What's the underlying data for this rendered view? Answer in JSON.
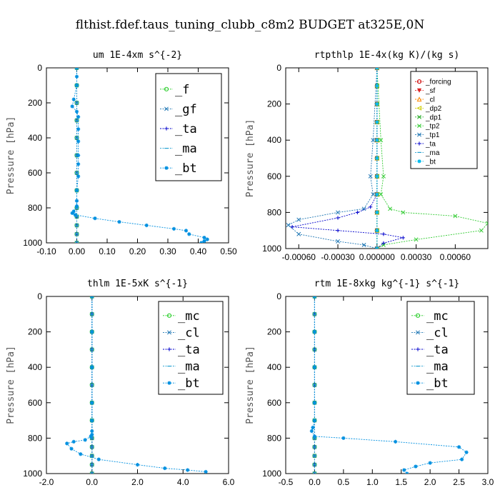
{
  "figure": {
    "title": "flthist.fdef.taus_tuning_clubb_c8m2  BUDGET at325E,0N"
  },
  "chart_data": [
    {
      "type": "line",
      "title": "um  1E-4xm s^{-2}",
      "ylabel": "Pressure [hPa]",
      "xlim": [
        -0.1,
        0.5
      ],
      "ylim": [
        1000,
        0
      ],
      "xticks": [
        -0.1,
        0.0,
        0.1,
        0.2,
        0.3,
        0.4,
        0.5
      ],
      "xtick_labels": [
        "-0.10",
        "0.00",
        "0.10",
        "0.20",
        "0.30",
        "0.40",
        "0.50"
      ],
      "yticks": [
        0,
        200,
        400,
        600,
        800,
        1000
      ],
      "ytick_labels": [
        "0",
        "200",
        "400",
        "600",
        "800",
        "1000"
      ],
      "legend": "top-right",
      "series": [
        {
          "name": "_f",
          "color": "#22cc22",
          "marker": "o",
          "x": [
            0,
            0,
            0,
            0,
            0,
            0,
            0,
            0,
            0,
            0,
            0,
            0,
            0
          ],
          "y": [
            0,
            100,
            200,
            300,
            400,
            500,
            600,
            700,
            800,
            850,
            900,
            950,
            1000
          ]
        },
        {
          "name": "_gf",
          "color": "#1f77b4",
          "marker": "x",
          "x": [
            0,
            0,
            0,
            0,
            0,
            0,
            0,
            0,
            0,
            0,
            0,
            0,
            0
          ],
          "y": [
            0,
            100,
            200,
            300,
            400,
            500,
            600,
            700,
            800,
            850,
            900,
            950,
            1000
          ]
        },
        {
          "name": "_ta",
          "color": "#0000cc",
          "marker": "+",
          "x": [
            0,
            0,
            0,
            0,
            0,
            0,
            0,
            0,
            0,
            0,
            0,
            0,
            0
          ],
          "y": [
            0,
            100,
            200,
            300,
            400,
            500,
            600,
            700,
            800,
            850,
            900,
            950,
            1000
          ]
        },
        {
          "name": "_ma",
          "color": "#1f9fd0",
          "marker": "-",
          "x": [
            0,
            0,
            0,
            0,
            0,
            0,
            0,
            0,
            0,
            0,
            0,
            0,
            0
          ],
          "y": [
            0,
            100,
            200,
            300,
            400,
            500,
            600,
            700,
            800,
            850,
            900,
            950,
            1000
          ]
        },
        {
          "name": "_bt",
          "color": "#0090e0",
          "marker": "*",
          "x": [
            0.0,
            0.0,
            0.0,
            -0.01,
            -0.015,
            0.0,
            0.005,
            0.005,
            0.005,
            0.005,
            0.005,
            0.005,
            0.0,
            0.0,
            0.0,
            -0.01,
            -0.015,
            -0.005,
            0.06,
            0.14,
            0.23,
            0.32,
            0.36,
            0.37,
            0.42,
            0.43,
            0.42,
            0.41
          ],
          "y": [
            0,
            50,
            100,
            180,
            220,
            250,
            280,
            350,
            420,
            500,
            550,
            620,
            700,
            760,
            790,
            820,
            830,
            840,
            860,
            880,
            900,
            920,
            930,
            950,
            970,
            980,
            990,
            1000
          ]
        }
      ]
    },
    {
      "type": "line",
      "title": "rtpthlp  1E-4x(kg K)/(kg s)",
      "ylabel": "Pressure [hPa]",
      "xlim": [
        -0.0007,
        0.00085
      ],
      "ylim": [
        1000,
        0
      ],
      "xticks": [
        -0.0006,
        -0.0003,
        0.0,
        0.0003,
        0.0006
      ],
      "xtick_labels": [
        "-0.00060",
        "-0.00030",
        "0.000000",
        "0.00030",
        "0.00060"
      ],
      "yticks": [
        0,
        200,
        400,
        600,
        800,
        1000
      ],
      "ytick_labels": [
        "0",
        "200",
        "400",
        "600",
        "800",
        "1000"
      ],
      "legend": "top-right",
      "series": [
        {
          "name": "_forcing",
          "color": "#cc0000",
          "marker": "o",
          "x": [
            0,
            0,
            0,
            0,
            0,
            0,
            0,
            0,
            0,
            0,
            0
          ],
          "y": [
            0,
            100,
            200,
            300,
            400,
            500,
            600,
            700,
            800,
            900,
            1000
          ]
        },
        {
          "name": "_sf",
          "color": "#dd2222",
          "marker": "v",
          "x": [
            0,
            0,
            0,
            0,
            0,
            0,
            0,
            0,
            0,
            0,
            0
          ],
          "y": [
            0,
            100,
            200,
            300,
            400,
            500,
            600,
            700,
            800,
            900,
            1000
          ]
        },
        {
          "name": "_cl",
          "color": "#ff8800",
          "marker": "^",
          "x": [
            0,
            0,
            0,
            0,
            0,
            0,
            0,
            0,
            0,
            0,
            0
          ],
          "y": [
            0,
            100,
            200,
            300,
            400,
            500,
            600,
            700,
            800,
            900,
            1000
          ]
        },
        {
          "name": "_dp2",
          "color": "#cccc00",
          "marker": "<",
          "x": [
            0,
            0,
            0,
            0,
            0,
            0,
            0,
            0,
            0,
            0,
            0
          ],
          "y": [
            0,
            100,
            200,
            300,
            400,
            500,
            600,
            700,
            800,
            900,
            1000
          ]
        },
        {
          "name": "_dp1",
          "color": "#22aa22",
          "marker": "x",
          "x": [
            0,
            0,
            0,
            0,
            0,
            0,
            0,
            0,
            0,
            0,
            0
          ],
          "y": [
            0,
            100,
            200,
            300,
            400,
            500,
            600,
            700,
            800,
            900,
            1000
          ]
        },
        {
          "name": "_tp2",
          "color": "#33cc33",
          "marker": "x",
          "x": [
            0.0,
            3e-05,
            5e-05,
            3e-05,
            0.0001,
            0.0002,
            0.0006,
            0.00085,
            0.0008,
            0.0003,
            5e-05,
            0.0
          ],
          "y": [
            0,
            400,
            600,
            700,
            780,
            800,
            820,
            860,
            900,
            950,
            980,
            1000
          ]
        },
        {
          "name": "_tp1",
          "color": "#1f77b4",
          "marker": "x",
          "x": [
            0.0,
            -3e-05,
            -5e-05,
            -3e-05,
            -0.0001,
            -0.0003,
            -0.0006,
            -0.00068,
            -0.0006,
            -0.0003,
            -0.0001,
            0.0
          ],
          "y": [
            0,
            400,
            600,
            700,
            780,
            800,
            840,
            870,
            920,
            960,
            980,
            1000
          ]
        },
        {
          "name": "_ta",
          "color": "#0000cc",
          "marker": "+",
          "x": [
            0.0,
            0.0,
            0.0,
            -5e-05,
            -0.00015,
            -0.0003,
            -0.00065,
            -0.0003,
            5e-05,
            0.0002,
            5e-05,
            0.0
          ],
          "y": [
            0,
            400,
            700,
            770,
            800,
            830,
            880,
            900,
            920,
            940,
            970,
            1000
          ]
        },
        {
          "name": "_ma",
          "color": "#1f9fd0",
          "marker": "-",
          "x": [
            0,
            0,
            0,
            0,
            0,
            0,
            0,
            0,
            0,
            0,
            0
          ],
          "y": [
            0,
            100,
            200,
            300,
            400,
            500,
            600,
            700,
            800,
            900,
            1000
          ]
        },
        {
          "name": "_bt",
          "color": "#00bbee",
          "marker": "*",
          "x": [
            0,
            0,
            0,
            0,
            0,
            0,
            0,
            0,
            0,
            0,
            0
          ],
          "y": [
            0,
            100,
            200,
            300,
            400,
            500,
            600,
            700,
            800,
            900,
            1000
          ]
        }
      ]
    },
    {
      "type": "line",
      "title": "thlm  1E-5xK s^{-1}",
      "ylabel": "Pressure [hPa]",
      "xlim": [
        -2.0,
        6.0
      ],
      "ylim": [
        1000,
        0
      ],
      "xticks": [
        -2.0,
        0.0,
        2.0,
        4.0,
        6.0
      ],
      "xtick_labels": [
        "-2.0",
        "0.0",
        "2.0",
        "4.0",
        "6.0"
      ],
      "yticks": [
        0,
        200,
        400,
        600,
        800,
        1000
      ],
      "ytick_labels": [
        "0",
        "200",
        "400",
        "600",
        "800",
        "1000"
      ],
      "legend": "top-right",
      "series": [
        {
          "name": "_mc",
          "color": "#22cc22",
          "marker": "o",
          "x": [
            0,
            0,
            0,
            0,
            0,
            0,
            0,
            0,
            0,
            0,
            0,
            0,
            0
          ],
          "y": [
            0,
            100,
            200,
            300,
            400,
            500,
            600,
            700,
            800,
            850,
            900,
            950,
            1000
          ]
        },
        {
          "name": "_cl",
          "color": "#1f77b4",
          "marker": "x",
          "x": [
            0,
            0,
            0,
            0,
            0,
            0,
            0,
            0,
            0,
            0,
            0,
            0,
            0
          ],
          "y": [
            0,
            100,
            200,
            300,
            400,
            500,
            600,
            700,
            800,
            850,
            900,
            950,
            1000
          ]
        },
        {
          "name": "_ta",
          "color": "#0000cc",
          "marker": "+",
          "x": [
            0,
            0,
            0,
            0,
            0,
            0,
            0,
            0,
            0,
            0,
            0,
            0,
            0
          ],
          "y": [
            0,
            100,
            200,
            300,
            400,
            500,
            600,
            700,
            800,
            850,
            900,
            950,
            1000
          ]
        },
        {
          "name": "_ma",
          "color": "#1f9fd0",
          "marker": "-",
          "x": [
            0,
            0,
            0,
            0,
            0,
            0,
            0,
            0,
            0,
            0,
            0,
            0,
            0
          ],
          "y": [
            0,
            100,
            200,
            300,
            400,
            500,
            600,
            700,
            800,
            850,
            900,
            950,
            1000
          ]
        },
        {
          "name": "_bt",
          "color": "#0090e0",
          "marker": "*",
          "x": [
            0.0,
            0.0,
            0.0,
            0.0,
            0.0,
            0.0,
            0.0,
            -0.05,
            -0.3,
            -0.8,
            -1.1,
            -0.9,
            -0.5,
            0.3,
            2.0,
            3.2,
            4.2,
            5.0
          ],
          "y": [
            0,
            200,
            400,
            600,
            700,
            760,
            780,
            790,
            810,
            820,
            830,
            860,
            890,
            920,
            950,
            970,
            980,
            990
          ]
        }
      ]
    },
    {
      "type": "line",
      "title": "rtm  1E-8xkg kg^{-1} s^{-1}",
      "ylabel": "Pressure [hPa]",
      "xlim": [
        -0.5,
        3.0
      ],
      "ylim": [
        1000,
        0
      ],
      "xticks": [
        -0.5,
        0.0,
        0.5,
        1.0,
        1.5,
        2.0,
        2.5,
        3.0
      ],
      "xtick_labels": [
        "-0.5",
        "0.0",
        "0.5",
        "1.0",
        "1.5",
        "2.0",
        "2.5",
        "3.0"
      ],
      "yticks": [
        0,
        200,
        400,
        600,
        800,
        1000
      ],
      "ytick_labels": [
        "0",
        "200",
        "400",
        "600",
        "800",
        "1000"
      ],
      "legend": "top-right",
      "series": [
        {
          "name": "_mc",
          "color": "#22cc22",
          "marker": "o",
          "x": [
            0,
            0,
            0,
            0,
            0,
            0,
            0,
            0,
            0,
            0,
            0,
            0,
            0
          ],
          "y": [
            0,
            100,
            200,
            300,
            400,
            500,
            600,
            700,
            800,
            850,
            900,
            950,
            1000
          ]
        },
        {
          "name": "_cl",
          "color": "#1f77b4",
          "marker": "x",
          "x": [
            0,
            0,
            0,
            0,
            0,
            0,
            0,
            0,
            0,
            0,
            0,
            0,
            0
          ],
          "y": [
            0,
            100,
            200,
            300,
            400,
            500,
            600,
            700,
            800,
            850,
            900,
            950,
            1000
          ]
        },
        {
          "name": "_ta",
          "color": "#0000cc",
          "marker": "+",
          "x": [
            0,
            0,
            0,
            0,
            0,
            0,
            0,
            0,
            0,
            0,
            0,
            0,
            0
          ],
          "y": [
            0,
            100,
            200,
            300,
            400,
            500,
            600,
            700,
            800,
            850,
            900,
            950,
            1000
          ]
        },
        {
          "name": "_ma",
          "color": "#1f9fd0",
          "marker": "-",
          "x": [
            0,
            0,
            0,
            0,
            0,
            0,
            0,
            0,
            0,
            0,
            0,
            0,
            0
          ],
          "y": [
            0,
            100,
            200,
            300,
            400,
            500,
            600,
            700,
            800,
            850,
            900,
            950,
            1000
          ]
        },
        {
          "name": "_bt",
          "color": "#0090e0",
          "marker": "*",
          "x": [
            0.0,
            0.0,
            0.0,
            0.0,
            0.0,
            -0.03,
            -0.05,
            0.0,
            0.5,
            1.4,
            2.5,
            2.63,
            2.55,
            2.0,
            1.75,
            1.55,
            1.6
          ],
          "y": [
            0,
            200,
            400,
            600,
            700,
            740,
            760,
            790,
            800,
            820,
            850,
            880,
            920,
            940,
            960,
            980,
            1000
          ]
        }
      ]
    }
  ]
}
